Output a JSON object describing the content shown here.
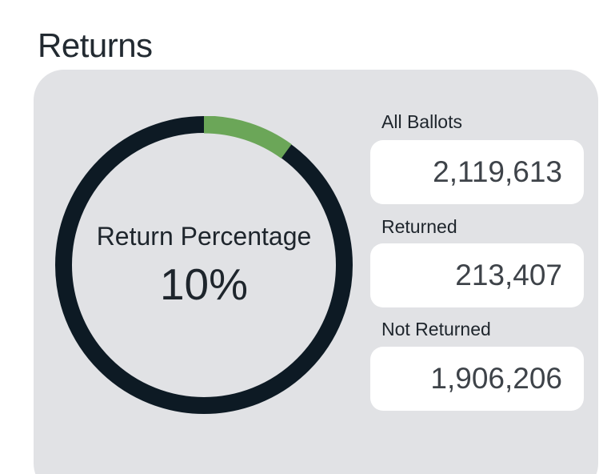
{
  "page_title": "Returns",
  "colors": {
    "card_bg": "#e1e2e5",
    "box_bg": "#ffffff",
    "title_text": "#222a31",
    "label_text": "#1e252c",
    "value_text": "#3e4349",
    "ring_dark": "#0d1a24",
    "accent_green": "#6ba658"
  },
  "chart_data": {
    "type": "pie",
    "variant": "donut",
    "title": "Return Percentage",
    "center_label": "Return Percentage",
    "center_value": "10%",
    "percent_returned": 10,
    "start_angle_deg": 0,
    "direction": "clockwise",
    "legend": "none",
    "slices": [
      {
        "label": "Returned",
        "value": 213407,
        "percent": 10,
        "color": "#6ba658"
      },
      {
        "label": "Not Returned",
        "value": 1906206,
        "percent": 90,
        "color": "#0d1a24"
      }
    ],
    "total": 2119613,
    "total_label": "All Ballots"
  },
  "stats": [
    {
      "label": "All Ballots",
      "value": "2,119,613"
    },
    {
      "label": "Returned",
      "value": "213,407"
    },
    {
      "label": "Not Returned",
      "value": "1,906,206"
    }
  ]
}
